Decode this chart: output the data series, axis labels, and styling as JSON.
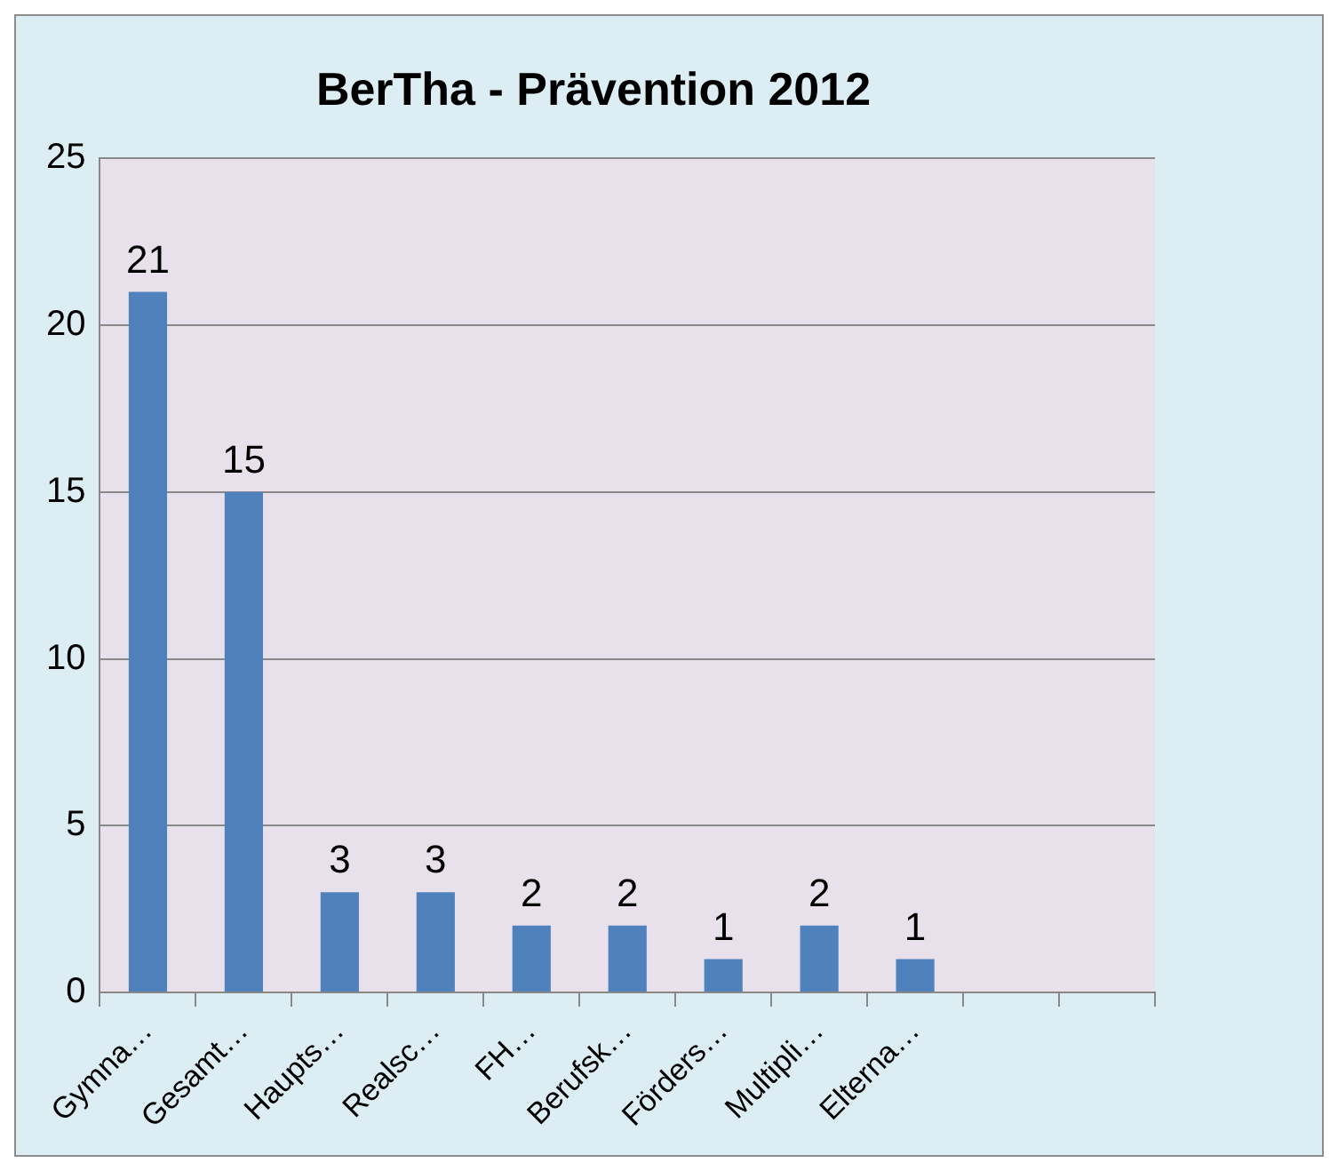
{
  "chart_data": {
    "type": "bar",
    "title": "BerTha - Prävention 2012",
    "categories": [
      "Gymna…",
      "Gesamt…",
      "Haupts…",
      "Realsc…",
      "FH…",
      "Berufsk…",
      "Förders…",
      "Multipli…",
      "Elterna…",
      null,
      null
    ],
    "values": [
      21,
      15,
      3,
      3,
      2,
      2,
      1,
      2,
      1,
      null,
      null
    ],
    "color": "#4f81bd",
    "ylim": [
      0,
      25
    ],
    "yticks": [
      0,
      5,
      10,
      15,
      20,
      25
    ],
    "grid": "y",
    "data_labels": true
  }
}
